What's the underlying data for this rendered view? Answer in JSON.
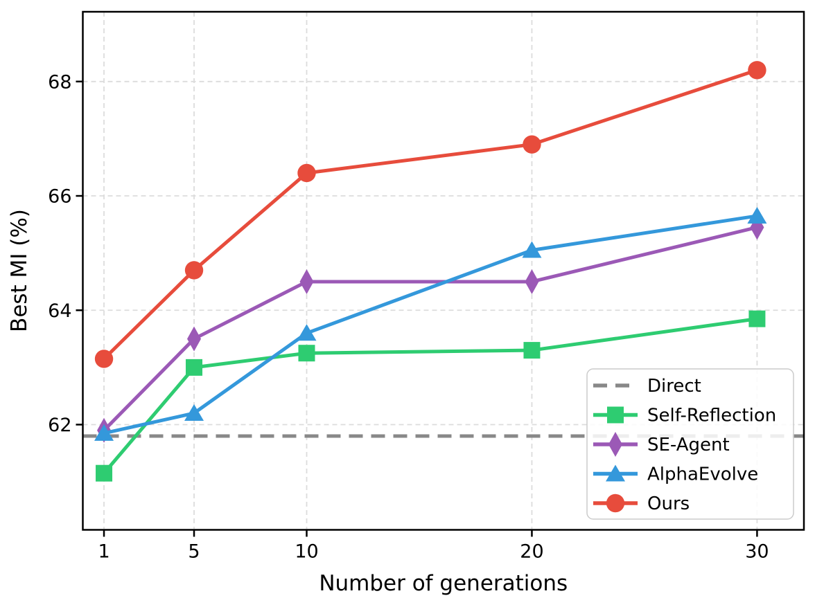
{
  "figure": {
    "background": "#ffffff",
    "border_color": "#000000"
  },
  "chart_data": {
    "type": "line",
    "title": "",
    "xlabel": "Number of generations",
    "ylabel": "Best MI (%)",
    "x": [
      1,
      5,
      10,
      20,
      30
    ],
    "xticks": [
      "1",
      "5",
      "10",
      "20",
      "30"
    ],
    "yticks": [
      "62",
      "64",
      "66",
      "68"
    ],
    "ytick_values": [
      62,
      64,
      66,
      68
    ],
    "xlim": [
      0.06,
      32.08
    ],
    "ylim": [
      60.16,
      69.22
    ],
    "grid": true,
    "grid_color": "#dcdcdc",
    "legend_position": "lower right",
    "legend_labels": [
      "Direct",
      "Self-Reflection",
      "SE-Agent",
      "AlphaEvolve",
      "Ours"
    ],
    "series": [
      {
        "name": "Direct",
        "style": "hline",
        "value": 61.8,
        "color": "#888888",
        "dashed": true,
        "marker": "none"
      },
      {
        "name": "Self-Reflection",
        "style": "line",
        "values": [
          61.15,
          63.0,
          63.25,
          63.3,
          63.85
        ],
        "color": "#2ecc71",
        "dashed": false,
        "marker": "square"
      },
      {
        "name": "SE-Agent",
        "style": "line",
        "values": [
          61.9,
          63.5,
          64.5,
          64.5,
          65.45
        ],
        "color": "#9b59b6",
        "dashed": false,
        "marker": "diamond"
      },
      {
        "name": "AlphaEvolve",
        "style": "line",
        "values": [
          61.85,
          62.2,
          63.6,
          65.05,
          65.65
        ],
        "color": "#3498db",
        "dashed": false,
        "marker": "triangle-up"
      },
      {
        "name": "Ours",
        "style": "line",
        "values": [
          63.15,
          64.7,
          66.4,
          66.9,
          68.2
        ],
        "color": "#e74c3c",
        "dashed": false,
        "marker": "circle"
      }
    ]
  }
}
